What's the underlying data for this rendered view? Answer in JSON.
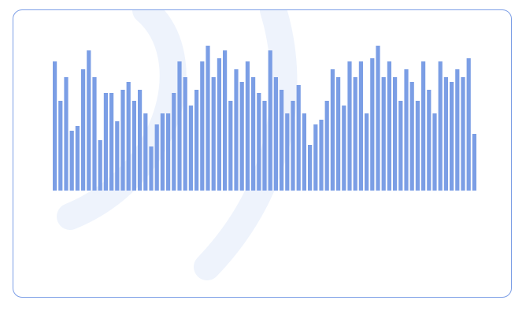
{
  "colors": {
    "bar": "#7b9ee5",
    "border": "#7c9ee6",
    "watermark": "#eef3fc",
    "background": "#ffffff"
  },
  "watermark": {
    "icon": "curved-stroke-watermark-icon"
  },
  "chart_data": {
    "type": "bar",
    "title": "",
    "xlabel": "",
    "ylabel": "",
    "ylim": [
      0,
      184
    ],
    "grid": false,
    "legend": "none",
    "values": [
      164,
      114,
      144,
      76,
      82,
      154,
      178,
      144,
      64,
      124,
      124,
      88,
      128,
      138,
      114,
      128,
      98,
      56,
      84,
      98,
      98,
      124,
      164,
      144,
      108,
      128,
      164,
      184,
      144,
      168,
      178,
      114,
      154,
      138,
      164,
      144,
      124,
      114,
      178,
      144,
      128,
      98,
      114,
      134,
      98,
      58,
      84,
      90,
      114,
      154,
      144,
      108,
      164,
      144,
      164,
      98,
      168,
      184,
      144,
      164,
      144,
      114,
      154,
      138,
      114,
      164,
      128,
      98,
      164,
      144,
      138,
      154,
      144,
      168,
      72
    ]
  }
}
